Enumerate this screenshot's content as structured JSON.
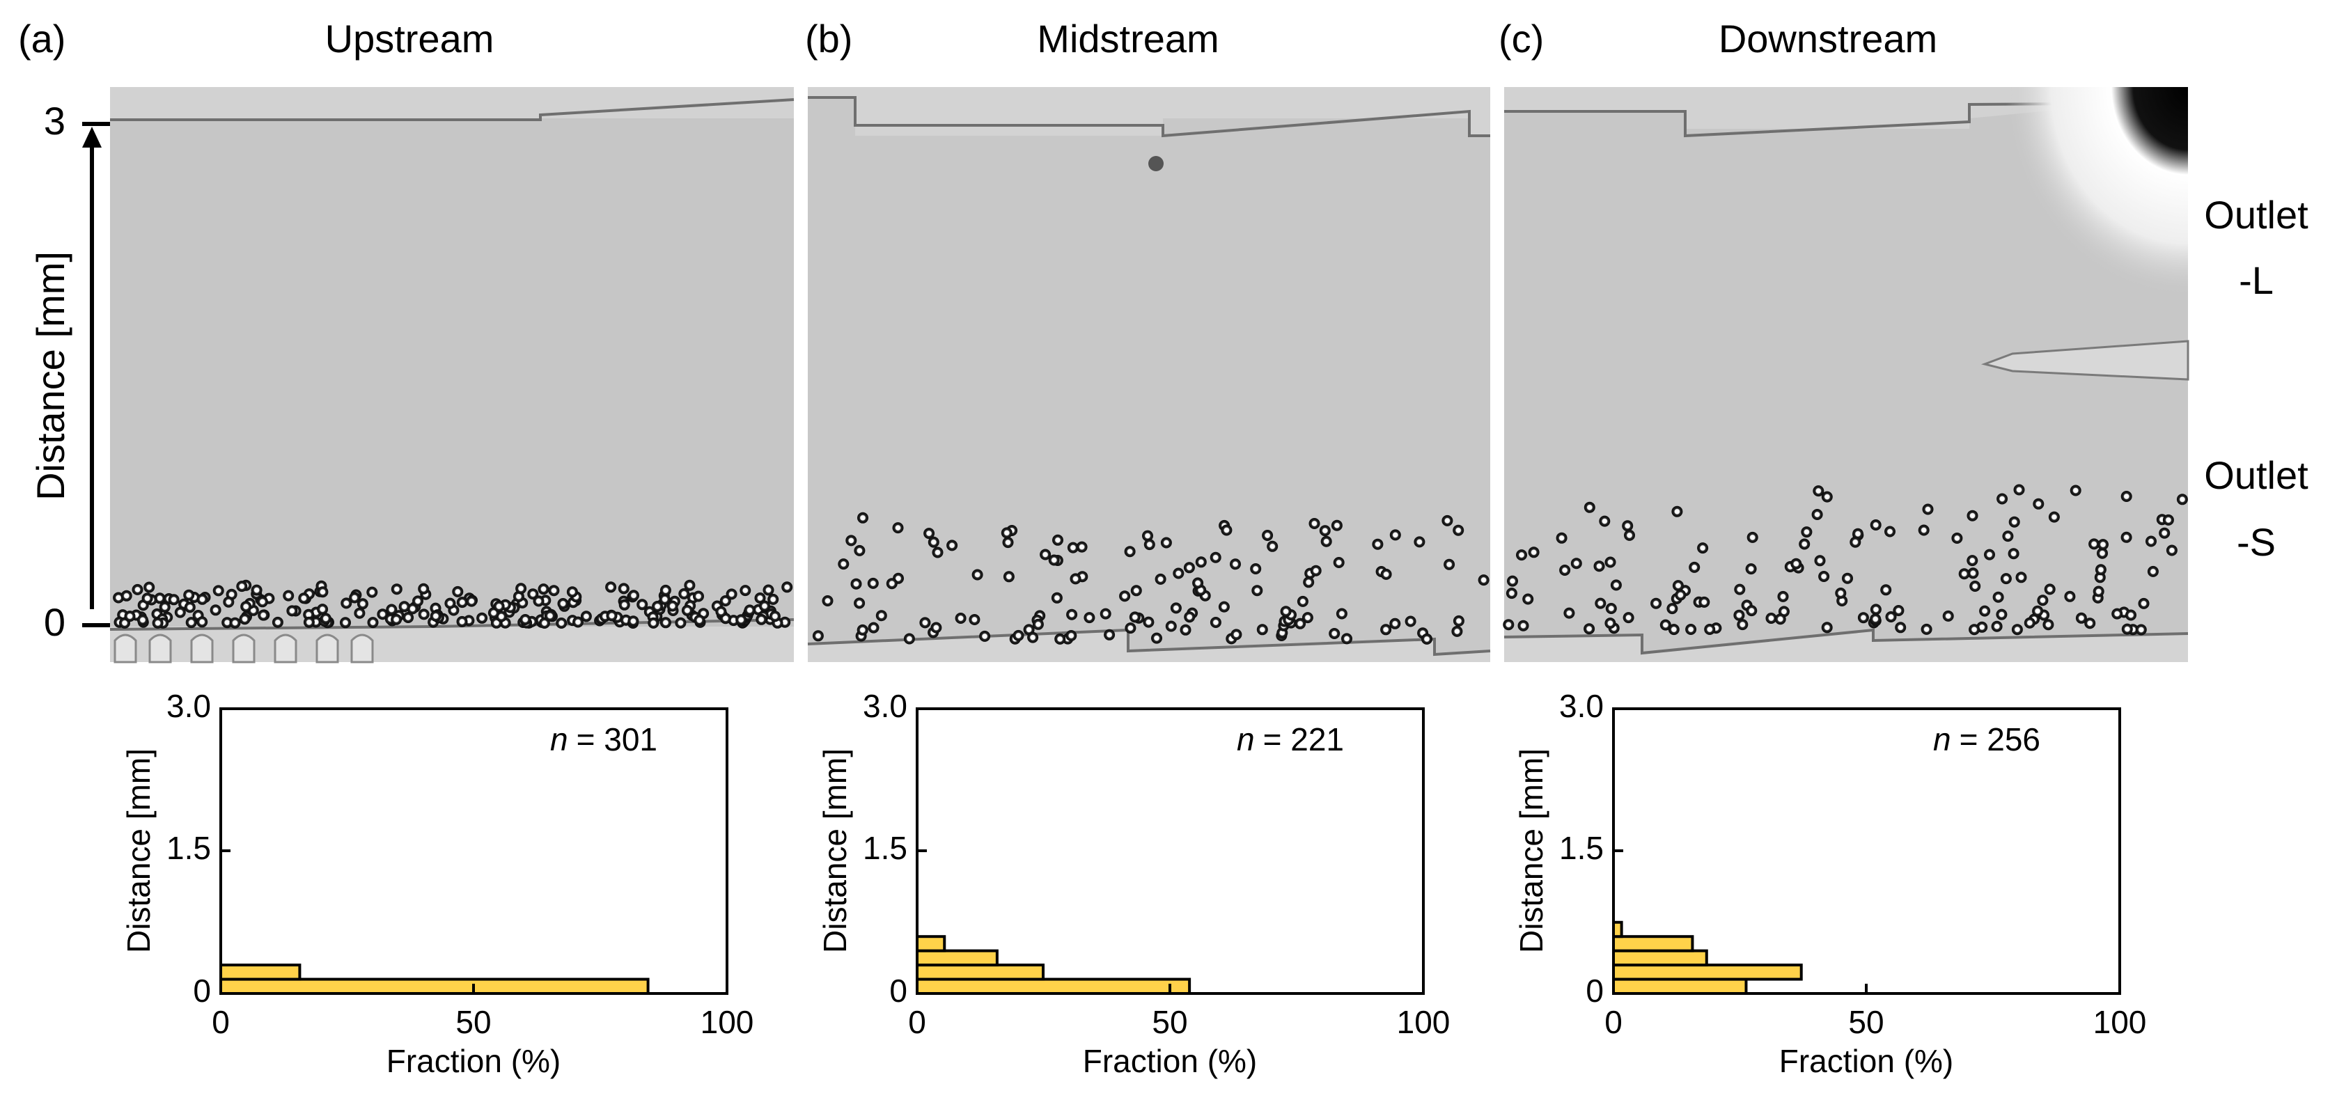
{
  "figure": {
    "side_labels": {
      "outlet_l": [
        "Outlet",
        "-L"
      ],
      "outlet_s": [
        "Outlet",
        "-S"
      ]
    },
    "image_axis": {
      "label": "Distance [mm]",
      "top_tick": "3",
      "bottom_tick": "0"
    }
  },
  "panels": [
    {
      "panel_label": "(a)",
      "title": "Upstream",
      "n_label": "n",
      "n_value": "= 301"
    },
    {
      "panel_label": "(b)",
      "title": "Midstream",
      "n_label": "n",
      "n_value": "= 221"
    },
    {
      "panel_label": "(c)",
      "title": "Downstream",
      "n_label": "n",
      "n_value": "= 256"
    }
  ],
  "chart_data": [
    {
      "type": "bar",
      "orientation": "horizontal",
      "title": "Upstream",
      "n": 301,
      "xlabel": "Fraction (%)",
      "ylabel": "Distance [mm]",
      "xlim": [
        0,
        100
      ],
      "ylim": [
        0,
        3.0
      ],
      "xticks": [
        "0",
        "50",
        "100"
      ],
      "yticks": [
        "0",
        "1.5",
        "3.0"
      ],
      "bin_width_mm": 0.15,
      "bins": [
        {
          "y0": 0.0,
          "value": 84.4
        },
        {
          "y0": 0.15,
          "value": 15.6
        }
      ],
      "bar_color": "#ffd24a"
    },
    {
      "type": "bar",
      "orientation": "horizontal",
      "title": "Midstream",
      "n": 221,
      "xlabel": "Fraction (%)",
      "ylabel": "Distance [mm]",
      "xlim": [
        0,
        100
      ],
      "ylim": [
        0,
        3.0
      ],
      "xticks": [
        "0",
        "50",
        "100"
      ],
      "yticks": [
        "0",
        "1.5",
        "3.0"
      ],
      "bin_width_mm": 0.15,
      "bins": [
        {
          "y0": 0.0,
          "value": 53.8
        },
        {
          "y0": 0.15,
          "value": 24.9
        },
        {
          "y0": 0.3,
          "value": 15.8
        },
        {
          "y0": 0.45,
          "value": 5.4
        }
      ],
      "bar_color": "#ffd24a"
    },
    {
      "type": "bar",
      "orientation": "horizontal",
      "title": "Downstream",
      "n": 256,
      "xlabel": "Fraction (%)",
      "ylabel": "Distance [mm]",
      "xlim": [
        0,
        100
      ],
      "ylim": [
        0,
        3.0
      ],
      "xticks": [
        "0",
        "50",
        "100"
      ],
      "yticks": [
        "0",
        "1.5",
        "3.0"
      ],
      "bin_width_mm": 0.15,
      "bins": [
        {
          "y0": 0.0,
          "value": 26.2
        },
        {
          "y0": 0.15,
          "value": 37.1
        },
        {
          "y0": 0.3,
          "value": 18.4
        },
        {
          "y0": 0.45,
          "value": 15.6
        },
        {
          "y0": 0.6,
          "value": 1.6
        }
      ],
      "bar_color": "#ffd24a"
    }
  ]
}
